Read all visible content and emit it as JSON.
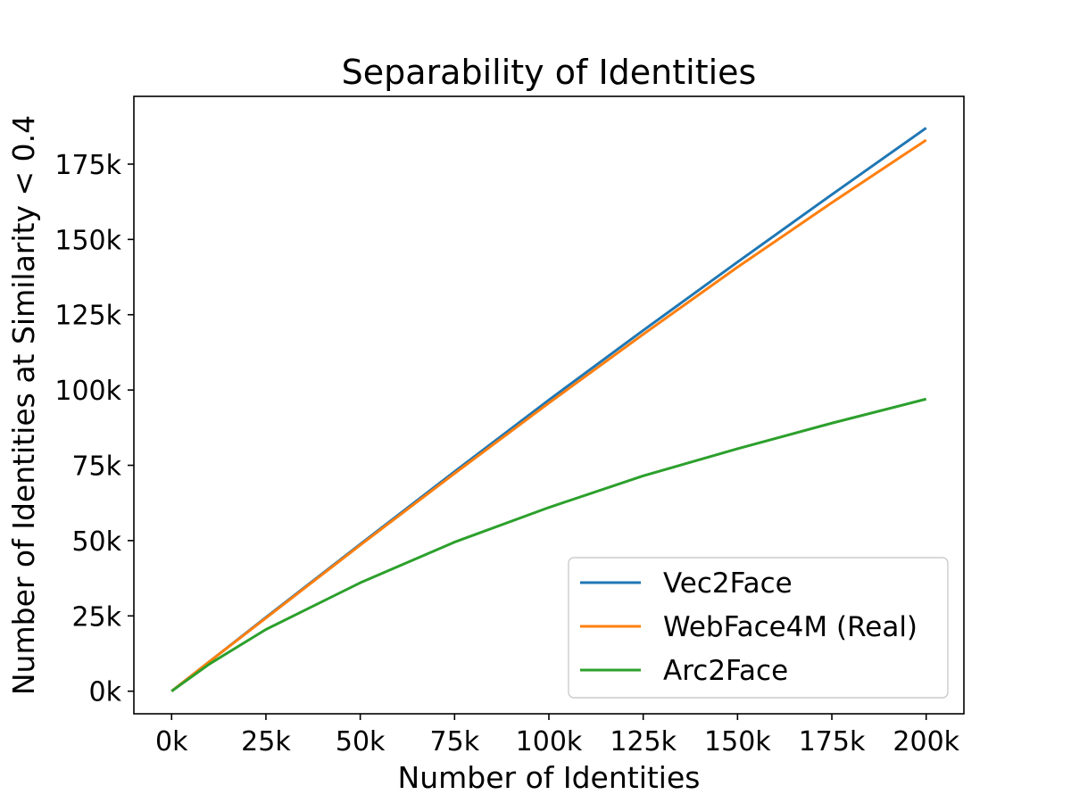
{
  "chart_data": {
    "type": "line",
    "title": "Separability of Identities",
    "xlabel": "Number of Identities",
    "ylabel": "Number of Identities at Similarity < 0.4",
    "xlim": [
      -10000,
      210000
    ],
    "ylim": [
      -7500,
      197500
    ],
    "x_ticks": [
      0,
      25000,
      50000,
      75000,
      100000,
      125000,
      150000,
      175000,
      200000
    ],
    "x_tick_labels": [
      "0k",
      "25k",
      "50k",
      "75k",
      "100k",
      "125k",
      "150k",
      "175k",
      "200k"
    ],
    "y_ticks": [
      0,
      25000,
      50000,
      75000,
      100000,
      125000,
      150000,
      175000
    ],
    "y_tick_labels": [
      "0k",
      "25k",
      "50k",
      "75k",
      "100k",
      "125k",
      "150k",
      "175k"
    ],
    "grid": false,
    "legend_position": "lower-right",
    "x": [
      0,
      10000,
      25000,
      50000,
      75000,
      100000,
      125000,
      150000,
      175000,
      200000
    ],
    "series": [
      {
        "name": "Vec2Face",
        "color": "#1f77b4",
        "values": [
          0,
          9800,
          24500,
          48800,
          72900,
          96700,
          119800,
          142500,
          164900,
          187000
        ]
      },
      {
        "name": "WebFace4M (Real)",
        "color": "#ff7f0e",
        "values": [
          0,
          9800,
          24300,
          48500,
          72300,
          95700,
          118500,
          140800,
          162200,
          183000
        ]
      },
      {
        "name": "Arc2Face",
        "color": "#2ca02c",
        "values": [
          0,
          9000,
          20500,
          36000,
          49500,
          61000,
          71500,
          80500,
          89000,
          97000
        ]
      }
    ]
  }
}
